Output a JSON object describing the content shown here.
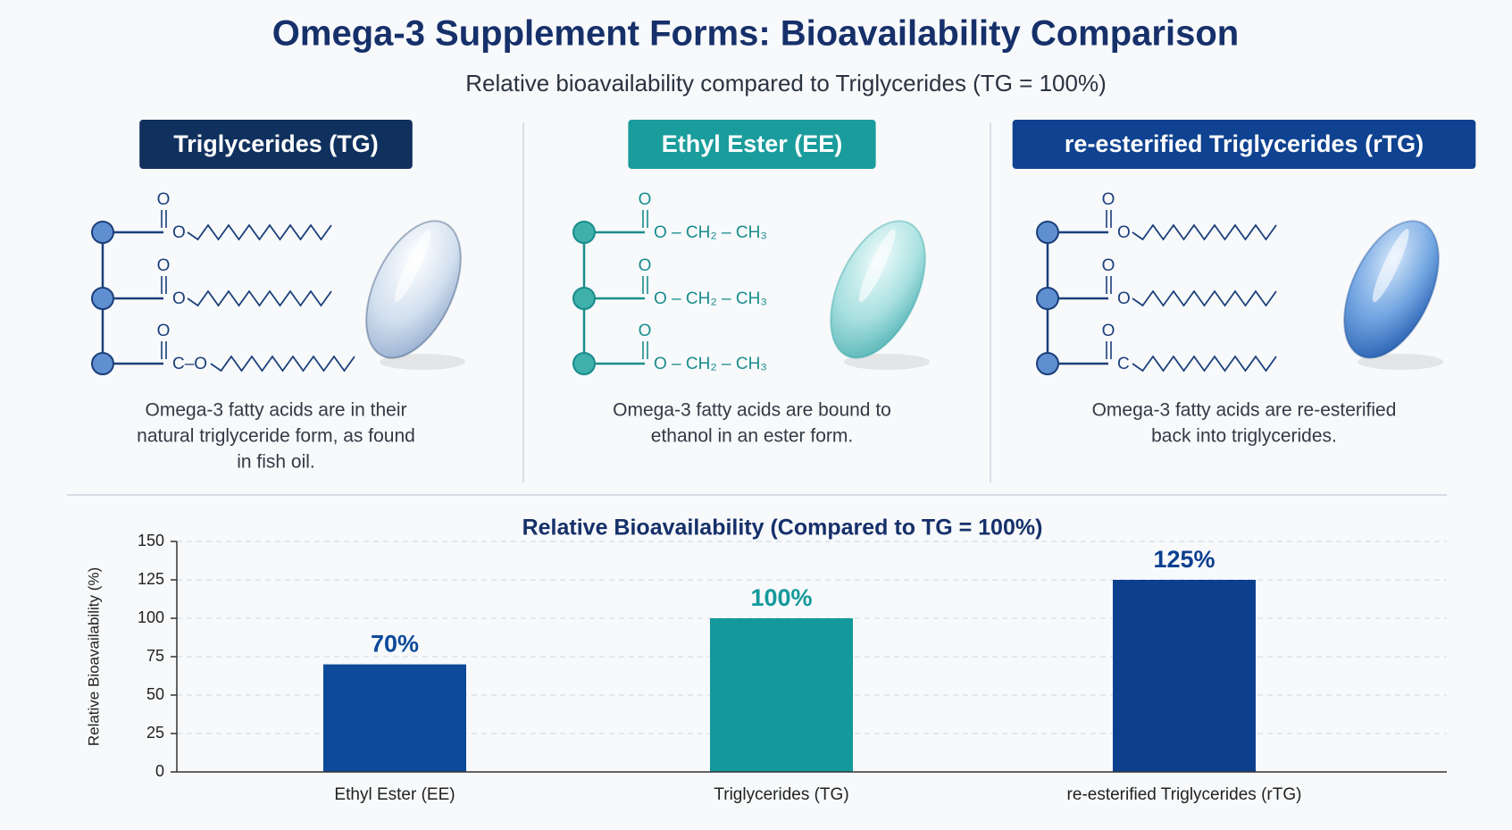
{
  "title": "Omega-3 Supplement Forms: Bioavailability Comparison",
  "subtitle": "Relative bioavailability compared to Triglycerides (TG = 100%)",
  "panels": [
    {
      "header": "Triglycerides (TG)",
      "carbonyl_oxygens": [
        "O",
        "O",
        "O"
      ],
      "rows": [
        "O",
        "O",
        "C–O"
      ],
      "description": [
        "Omega-3 fatty acids are in their",
        "natural triglyceride form, as found",
        "in fish oil."
      ]
    },
    {
      "header": "Ethyl Ester (EE)",
      "carbonyl_oxygens": [
        "O",
        "O",
        "O"
      ],
      "rows": [
        "O – CH₂ – CH₃",
        "O – CH₂ – CH₃",
        "O – CH₂ – CH₃"
      ],
      "description": [
        "Omega-3 fatty acids are bound to",
        "ethanol in an ester form."
      ]
    },
    {
      "header": "re-esterified Triglycerides (rTG)",
      "carbonyl_oxygens": [
        "O",
        "O",
        "O"
      ],
      "rows": [
        "O",
        "O",
        "C"
      ],
      "description": [
        "Omega-3 fatty acids are re-esterified",
        "back into triglycerides."
      ]
    }
  ],
  "chart_data": {
    "type": "bar",
    "title": "Relative Bioavailability (Compared to TG = 100%)",
    "ylabel": "Relative Bioavailability (%)",
    "categories": [
      "Ethyl Ester (EE)",
      "Triglycerides (TG)",
      "re-esterified Triglycerides (rTG)"
    ],
    "values": [
      70,
      100,
      125
    ],
    "value_labels": [
      "70%",
      "100%",
      "125%"
    ],
    "colors": [
      "#0d4a9a",
      "#13999b",
      "#0d3f8f"
    ],
    "ylim": [
      0,
      150
    ],
    "yticks": [
      0,
      25,
      50,
      75,
      100,
      125,
      150
    ],
    "grid": true
  }
}
